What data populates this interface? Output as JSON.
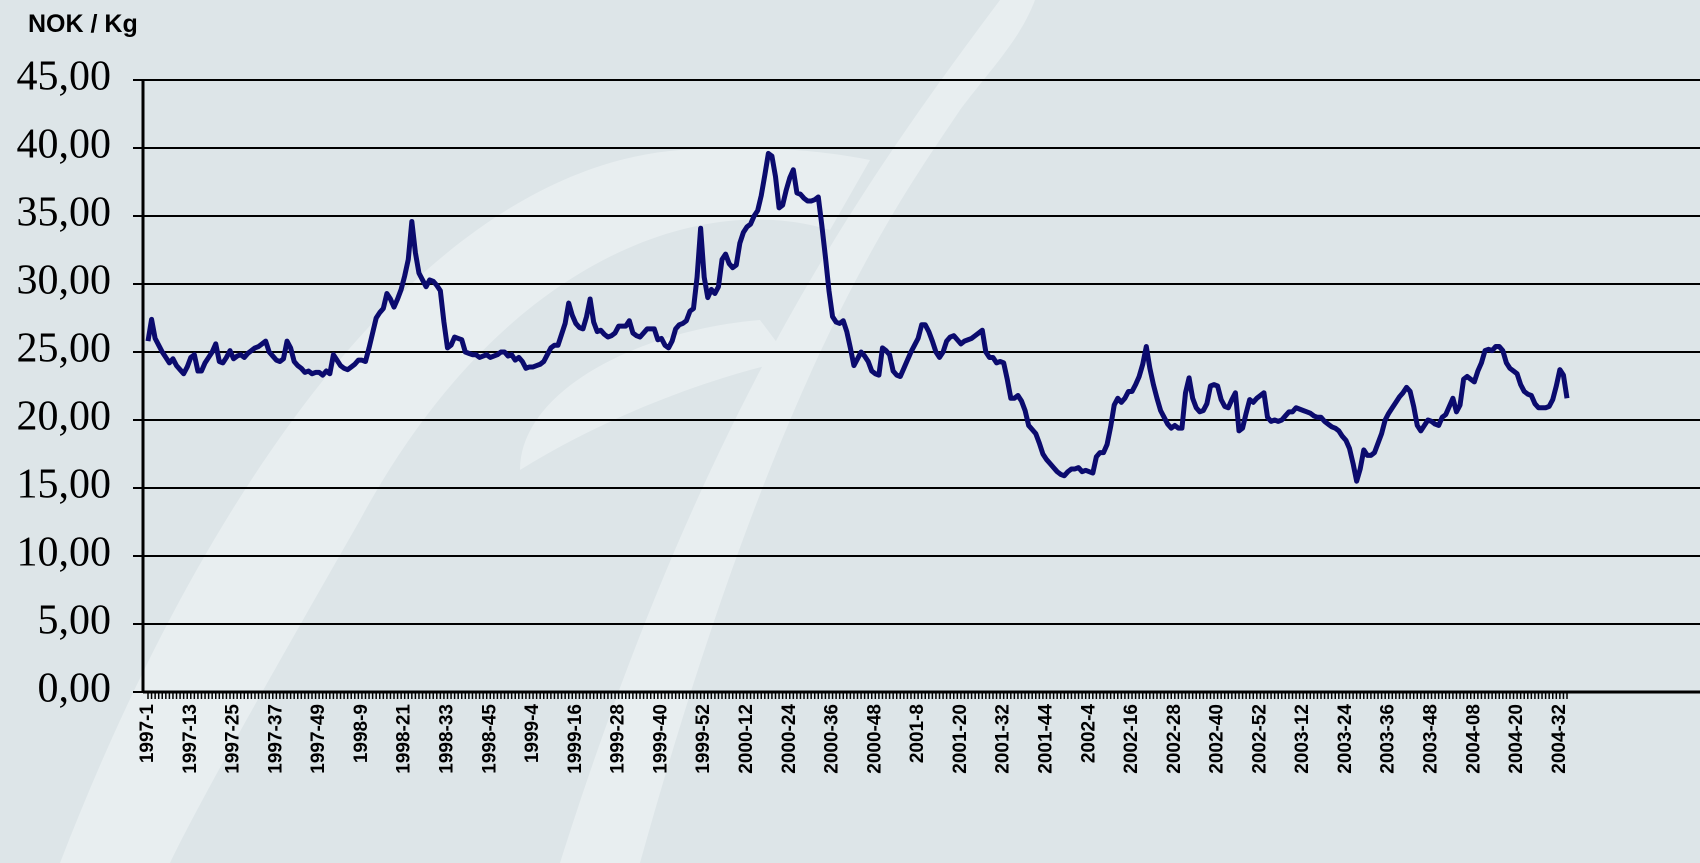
{
  "chart_data": {
    "type": "line",
    "title": "NOK / Kg",
    "categories": [
      "1997-1",
      null,
      null,
      null,
      null,
      null,
      null,
      null,
      null,
      null,
      null,
      null,
      "1997-13",
      null,
      null,
      null,
      null,
      null,
      null,
      null,
      null,
      null,
      null,
      null,
      "1997-25",
      null,
      null,
      null,
      null,
      null,
      null,
      null,
      null,
      null,
      null,
      null,
      "1997-37",
      null,
      null,
      null,
      null,
      null,
      null,
      null,
      null,
      null,
      null,
      null,
      "1997-49",
      null,
      null,
      null,
      null,
      null,
      null,
      null,
      null,
      null,
      null,
      null,
      "1998-9",
      null,
      null,
      null,
      null,
      null,
      null,
      null,
      null,
      null,
      null,
      null,
      "1998-21",
      null,
      null,
      null,
      null,
      null,
      null,
      null,
      null,
      null,
      null,
      null,
      "1998-33",
      null,
      null,
      null,
      null,
      null,
      null,
      null,
      null,
      null,
      null,
      null,
      "1998-45",
      null,
      null,
      null,
      null,
      null,
      null,
      null,
      null,
      null,
      null,
      null,
      "1999-4",
      null,
      null,
      null,
      null,
      null,
      null,
      null,
      null,
      null,
      null,
      null,
      "1999-16",
      null,
      null,
      null,
      null,
      null,
      null,
      null,
      null,
      null,
      null,
      null,
      "1999-28",
      null,
      null,
      null,
      null,
      null,
      null,
      null,
      null,
      null,
      null,
      null,
      "1999-40",
      null,
      null,
      null,
      null,
      null,
      null,
      null,
      null,
      null,
      null,
      null,
      "1999-52",
      null,
      null,
      null,
      null,
      null,
      null,
      null,
      null,
      null,
      null,
      null,
      "2000-12",
      null,
      null,
      null,
      null,
      null,
      null,
      null,
      null,
      null,
      null,
      null,
      "2000-24",
      null,
      null,
      null,
      null,
      null,
      null,
      null,
      null,
      null,
      null,
      null,
      "2000-36",
      null,
      null,
      null,
      null,
      null,
      null,
      null,
      null,
      null,
      null,
      null,
      "2000-48",
      null,
      null,
      null,
      null,
      null,
      null,
      null,
      null,
      null,
      null,
      null,
      "2001-8",
      null,
      null,
      null,
      null,
      null,
      null,
      null,
      null,
      null,
      null,
      null,
      "2001-20",
      null,
      null,
      null,
      null,
      null,
      null,
      null,
      null,
      null,
      null,
      null,
      "2001-32",
      null,
      null,
      null,
      null,
      null,
      null,
      null,
      null,
      null,
      null,
      null,
      "2001-44",
      null,
      null,
      null,
      null,
      null,
      null,
      null,
      null,
      null,
      null,
      null,
      "2002-4",
      null,
      null,
      null,
      null,
      null,
      null,
      null,
      null,
      null,
      null,
      null,
      "2002-16",
      null,
      null,
      null,
      null,
      null,
      null,
      null,
      null,
      null,
      null,
      null,
      "2002-28",
      null,
      null,
      null,
      null,
      null,
      null,
      null,
      null,
      null,
      null,
      null,
      "2002-40",
      null,
      null,
      null,
      null,
      null,
      null,
      null,
      null,
      null,
      null,
      null,
      "2002-52",
      null,
      null,
      null,
      null,
      null,
      null,
      null,
      null,
      null,
      null,
      null,
      "2003-12",
      null,
      null,
      null,
      null,
      null,
      null,
      null,
      null,
      null,
      null,
      null,
      "2003-24",
      null,
      null,
      null,
      null,
      null,
      null,
      null,
      null,
      null,
      null,
      null,
      "2003-36",
      null,
      null,
      null,
      null,
      null,
      null,
      null,
      null,
      null,
      null,
      null,
      "2003-48",
      null,
      null,
      null,
      null,
      null,
      null,
      null,
      null,
      null,
      null,
      null,
      "2004-08",
      null,
      null,
      null,
      null,
      null,
      null,
      null,
      null,
      null,
      null,
      null,
      "2004-20",
      null,
      null,
      null,
      null,
      null,
      null,
      null,
      null,
      null,
      null,
      null,
      "2004-32",
      null,
      null
    ],
    "values": [
      25.8,
      27.4,
      26.0,
      25.5,
      25.0,
      24.6,
      24.2,
      24.5,
      24.0,
      23.7,
      23.4,
      23.9,
      24.6,
      24.8,
      23.6,
      23.6,
      24.2,
      24.6,
      25.0,
      25.6,
      24.3,
      24.2,
      24.6,
      25.1,
      24.5,
      24.7,
      24.8,
      24.6,
      24.9,
      25.1,
      25.3,
      25.4,
      25.6,
      25.8,
      25.0,
      24.7,
      24.4,
      24.3,
      24.5,
      25.8,
      25.3,
      24.3,
      24.0,
      23.8,
      23.5,
      23.6,
      23.4,
      23.5,
      23.5,
      23.3,
      23.6,
      23.4,
      24.8,
      24.4,
      24.0,
      23.8,
      23.7,
      23.9,
      24.1,
      24.4,
      24.4,
      24.3,
      25.3,
      26.4,
      27.5,
      27.9,
      28.2,
      29.3,
      28.9,
      28.3,
      28.9,
      29.6,
      30.6,
      31.8,
      34.6,
      32.3,
      30.8,
      30.3,
      29.8,
      30.3,
      30.2,
      29.9,
      29.5,
      27.2,
      25.3,
      25.5,
      26.1,
      26.0,
      25.9,
      25.0,
      24.9,
      24.8,
      24.8,
      24.6,
      24.7,
      24.8,
      24.6,
      24.7,
      24.8,
      25.0,
      25.0,
      24.7,
      24.8,
      24.4,
      24.6,
      24.3,
      23.8,
      23.9,
      23.9,
      24.0,
      24.1,
      24.3,
      24.8,
      25.3,
      25.5,
      25.5,
      26.3,
      27.1,
      28.6,
      27.7,
      27.1,
      26.8,
      26.7,
      27.6,
      28.9,
      27.2,
      26.5,
      26.6,
      26.3,
      26.1,
      26.2,
      26.4,
      26.9,
      26.9,
      26.9,
      27.3,
      26.4,
      26.2,
      26.1,
      26.4,
      26.7,
      26.7,
      26.7,
      25.9,
      26.0,
      25.5,
      25.3,
      25.8,
      26.7,
      27.0,
      27.1,
      27.3,
      28.0,
      28.2,
      30.5,
      34.1,
      30.5,
      29.0,
      29.6,
      29.3,
      29.8,
      31.8,
      32.2,
      31.5,
      31.2,
      31.4,
      33.0,
      33.8,
      34.2,
      34.4,
      35.0,
      35.4,
      36.5,
      38.0,
      39.6,
      39.4,
      37.9,
      35.6,
      35.8,
      36.9,
      37.8,
      38.4,
      36.7,
      36.6,
      36.3,
      36.1,
      36.1,
      36.2,
      36.4,
      34.3,
      32.0,
      29.5,
      27.6,
      27.2,
      27.1,
      27.3,
      26.5,
      25.3,
      24.0,
      24.5,
      25.0,
      24.7,
      24.3,
      23.6,
      23.4,
      23.3,
      25.3,
      25.1,
      24.8,
      23.6,
      23.3,
      23.2,
      23.8,
      24.4,
      25.0,
      25.5,
      26.0,
      27.0,
      27.0,
      26.5,
      25.8,
      25.0,
      24.6,
      25.0,
      25.8,
      26.1,
      26.2,
      25.9,
      25.6,
      25.8,
      25.9,
      26.0,
      26.2,
      26.4,
      26.6,
      25.0,
      24.6,
      24.6,
      24.2,
      24.3,
      24.2,
      23.0,
      21.6,
      21.6,
      21.8,
      21.4,
      20.7,
      19.6,
      19.3,
      19.0,
      18.3,
      17.5,
      17.1,
      16.8,
      16.5,
      16.2,
      16.0,
      15.9,
      16.2,
      16.4,
      16.4,
      16.5,
      16.2,
      16.3,
      16.2,
      16.1,
      17.3,
      17.6,
      17.6,
      18.2,
      19.5,
      21.1,
      21.6,
      21.3,
      21.6,
      22.1,
      22.1,
      22.6,
      23.2,
      24.1,
      25.4,
      23.8,
      22.6,
      21.6,
      20.7,
      20.2,
      19.7,
      19.4,
      19.6,
      19.4,
      19.4,
      22.0,
      23.1,
      21.6,
      20.9,
      20.6,
      20.7,
      21.2,
      22.5,
      22.6,
      22.5,
      21.5,
      21.0,
      20.9,
      21.5,
      22.0,
      19.2,
      19.4,
      20.5,
      21.5,
      21.3,
      21.6,
      21.8,
      22.0,
      20.2,
      19.9,
      20.0,
      19.9,
      20.0,
      20.3,
      20.6,
      20.6,
      20.9,
      20.8,
      20.7,
      20.6,
      20.5,
      20.3,
      20.2,
      20.2,
      19.9,
      19.7,
      19.5,
      19.4,
      19.2,
      18.8,
      18.5,
      17.9,
      16.8,
      15.5,
      16.4,
      17.8,
      17.4,
      17.4,
      17.6,
      18.3,
      19.0,
      20.0,
      20.5,
      20.9,
      21.3,
      21.7,
      22.0,
      22.4,
      22.1,
      21.0,
      19.6,
      19.2,
      19.6,
      20.0,
      19.9,
      19.7,
      19.6,
      20.2,
      20.4,
      21.0,
      21.6,
      20.6,
      21.1,
      23.0,
      23.2,
      23.0,
      22.8,
      23.6,
      24.2,
      25.1,
      25.2,
      25.1,
      25.4,
      25.4,
      25.1,
      24.2,
      23.8,
      23.6,
      23.4,
      22.6,
      22.1,
      21.9,
      21.8,
      21.2,
      20.9,
      20.9,
      20.9,
      21.0,
      21.5,
      22.5,
      23.7,
      23.3,
      21.6
    ],
    "color": "#0b0b6e",
    "ylim": [
      0,
      45
    ],
    "yticks": [
      {
        "value": 0,
        "label": "0,00"
      },
      {
        "value": 5,
        "label": "5,00"
      },
      {
        "value": 10,
        "label": "10,00"
      },
      {
        "value": 15,
        "label": "15,00"
      },
      {
        "value": 20,
        "label": "20,00"
      },
      {
        "value": 25,
        "label": "25,00"
      },
      {
        "value": 30,
        "label": "30,00"
      },
      {
        "value": 35,
        "label": "35,00"
      },
      {
        "value": 40,
        "label": "40,00"
      },
      {
        "value": 45,
        "label": "45,00"
      }
    ],
    "grid": true
  }
}
